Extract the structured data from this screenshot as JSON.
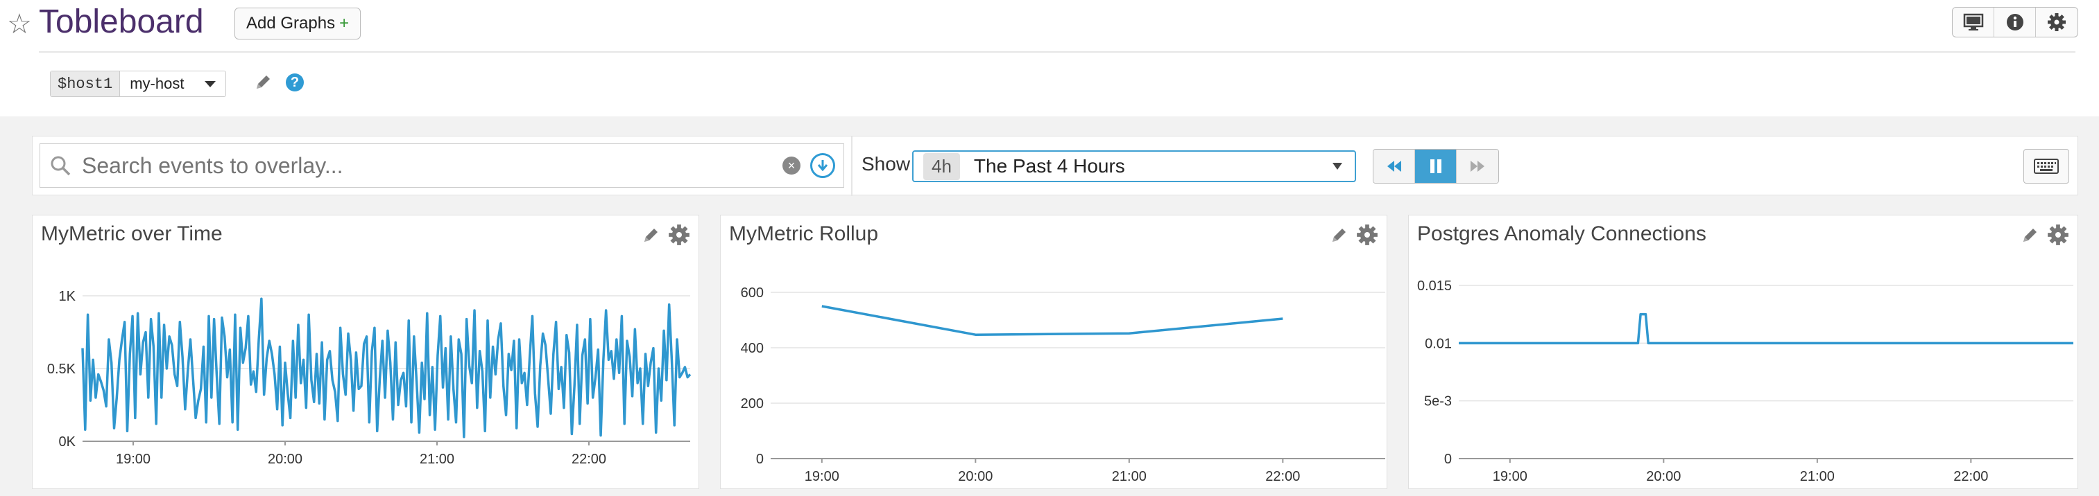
{
  "header": {
    "title": "Tobleboard",
    "add_graphs_label": "Add Graphs",
    "add_graphs_plus": "+"
  },
  "template_variable": {
    "name": "$host1",
    "value": "my-host"
  },
  "toolbar_icons": [
    "tv-mode-icon",
    "info-icon",
    "gear-icon"
  ],
  "search": {
    "placeholder": "Search events to overlay..."
  },
  "timeframe": {
    "show_label": "Show",
    "badge": "4h",
    "label": "The Past 4 Hours"
  },
  "colors": {
    "accent": "#3fa0d2",
    "series": "#2f97cf",
    "title": "#4b2f6b"
  },
  "widgets": [
    {
      "title": "MyMetric over Time",
      "chart_data": {
        "type": "line",
        "x_ticks": [
          "19:00",
          "20:00",
          "21:00",
          "22:00"
        ],
        "y_ticks": [
          "0K",
          "0.5K",
          "1K"
        ],
        "ylim": [
          0,
          1000
        ],
        "x_range": [
          "18:40",
          "22:40"
        ],
        "grid": true,
        "series": [
          {
            "values": [
              640,
              80,
              870,
              280,
              560,
              300,
              460,
              410,
              350,
              240,
              700,
              540,
              90,
              300,
              560,
              700,
              820,
              70,
              600,
              860,
              160,
              880,
              460,
              680,
              750,
              300,
              840,
              650,
              120,
              880,
              300,
              800,
              500,
              720,
              660,
              460,
              380,
              820,
              580,
              220,
              480,
              700,
              430,
              160,
              280,
              360,
              650,
              130,
              860,
              300,
              840,
              460,
              120,
              850,
              720,
              440,
              630,
              130,
              870,
              80,
              780,
              540,
              640,
              860,
              390,
              480,
              340,
              700,
              980,
              320,
              570,
              690,
              600,
              460,
              220,
              650,
              110,
              540,
              330,
              160,
              690,
              300,
              800,
              400,
              560,
              230,
              870,
              420,
              270,
              600,
              260,
              680,
              150,
              560,
              620,
              420,
              340,
              140,
              780,
              460,
              320,
              740,
              560,
              210,
              610,
              360,
              380,
              670,
              720,
              130,
              620,
              780,
              70,
              430,
              690,
              300,
              760,
              540,
              150,
              680,
              250,
              420,
              470,
              240,
              830,
              130,
              720,
              410,
              60,
              540,
              290,
              880,
              180,
              510,
              80,
              590,
              860,
              370,
              640,
              150,
              720,
              360,
              130,
              700,
              600,
              30,
              840,
              520,
              400,
              900,
              230,
              620,
              480,
              70,
              830,
              300,
              650,
              460,
              700,
              810,
              380,
              180,
              600,
              490,
              690,
              90,
              700,
              400,
              470,
              250,
              580,
              860,
              330,
              100,
              520,
              740,
              660,
              430,
              190,
              600,
              820,
              360,
              510,
              230,
              730,
              610,
              50,
              380,
              800,
              120,
              590,
              700,
              260,
              840,
              300,
              440,
              630,
              40,
              560,
              900,
              560,
              620,
              430,
              700,
              470,
              860,
              120,
              690,
              580,
              310,
              770,
              400,
              500,
              120,
              600,
              380,
              540,
              640,
              60,
              500,
              280,
              760,
              420,
              940,
              560,
              110,
              700,
              440,
              470,
              510,
              440,
              460
            ]
          }
        ]
      }
    },
    {
      "title": "MyMetric Rollup",
      "chart_data": {
        "type": "line",
        "x_ticks": [
          "19:00",
          "20:00",
          "21:00",
          "22:00"
        ],
        "y_ticks": [
          "0",
          "200",
          "400",
          "600"
        ],
        "ylim": [
          0,
          600
        ],
        "grid": true,
        "series": [
          {
            "x": [
              "19:00",
              "20:00",
              "21:00",
              "22:00"
            ],
            "values": [
              550,
              447,
              452,
              505
            ]
          }
        ]
      }
    },
    {
      "title": "Postgres Anomaly Connections",
      "chart_data": {
        "type": "line",
        "x_ticks": [
          "19:00",
          "20:00",
          "21:00",
          "22:00"
        ],
        "y_ticks": [
          "0",
          "5e-3",
          "0.01",
          "0.015"
        ],
        "ylim": [
          0,
          0.015
        ],
        "grid": true,
        "series": [
          {
            "x": [
              "18:40",
              "19:50",
              "19:51",
              "19:52",
              "19:53",
              "19:54",
              "22:40"
            ],
            "values": [
              0.01,
              0.01,
              0.0125,
              0.0125,
              0.0125,
              0.01,
              0.01
            ]
          }
        ]
      }
    }
  ]
}
